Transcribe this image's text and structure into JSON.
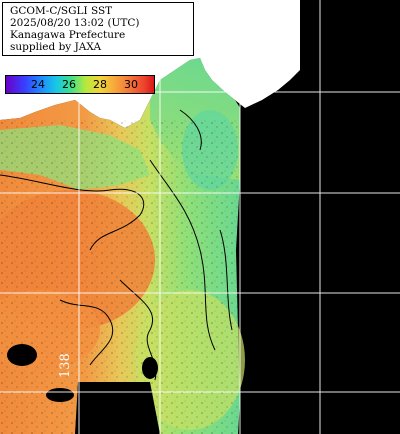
{
  "header": {
    "line1": "GCOM-C/SGLI SST",
    "line2": "2025/08/20 13:02 (UTC)",
    "line3": "Kanagawa Prefecture",
    "line4": "supplied by JAXA"
  },
  "colorbar": {
    "ticks": [
      "24",
      "26",
      "28",
      "30"
    ],
    "colors": [
      "#6a00c8",
      "#3a3cff",
      "#17c8e6",
      "#3fe08a",
      "#f2d43a",
      "#f4743a",
      "#d81818"
    ]
  },
  "grid_labels": {
    "lon": "138"
  },
  "colors": {
    "land": "#ffffff",
    "no_data": "#000000",
    "grid": "#ffffff",
    "warm": "#f08a3c",
    "mid": "#d8e060",
    "cool": "#6fe08a"
  }
}
